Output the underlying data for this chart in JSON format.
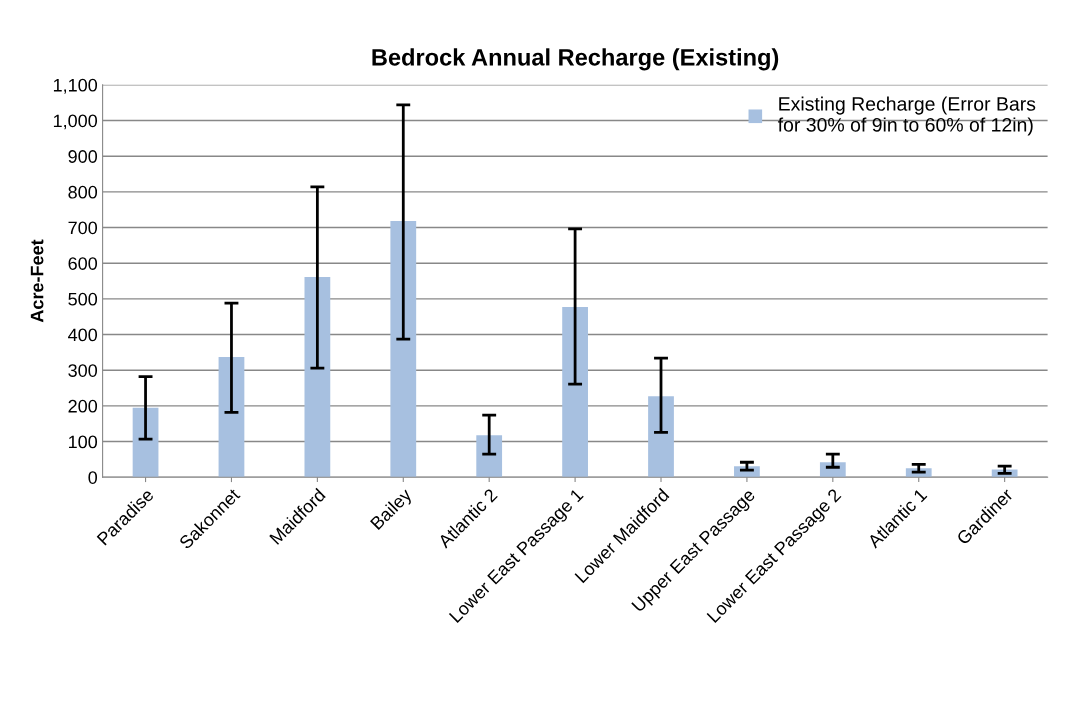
{
  "chart_data": {
    "type": "bar",
    "title": "Bedrock Annual Recharge (Existing)",
    "ylabel": "Acre-Feet",
    "categories": [
      "Paradise",
      "Sakonnet",
      "Maidford",
      "Bailey",
      "Atlantic 2",
      "Lower East Passage 1",
      "Lower Maidford",
      "Upper East Passage",
      "Lower East Passage 2",
      "Atlantic 1",
      "Gardiner"
    ],
    "series": [
      {
        "name": "Existing Recharge (Error Bars\nfor 30% of 9in to 60% of 12in)",
        "color": "#a7c0e0",
        "values": [
          195,
          337,
          561,
          718,
          118,
          477,
          227,
          31,
          42,
          25,
          22
        ],
        "errors": [
          [
            107,
            282
          ],
          [
            182,
            488
          ],
          [
            306,
            814
          ],
          [
            387,
            1044
          ],
          [
            65,
            174
          ],
          [
            261,
            696
          ],
          [
            126,
            334
          ],
          [
            20,
            42
          ],
          [
            28,
            65
          ],
          [
            14,
            36
          ],
          [
            11,
            31
          ]
        ]
      }
    ],
    "ylim": [
      0,
      1100
    ],
    "yticks": [
      0,
      100,
      200,
      300,
      400,
      500,
      600,
      700,
      800,
      900,
      {
        "value": 1000,
        "label": "1,000"
      },
      {
        "value": 1100,
        "label": "1,100"
      }
    ],
    "grid": "y",
    "legend": "top right"
  }
}
